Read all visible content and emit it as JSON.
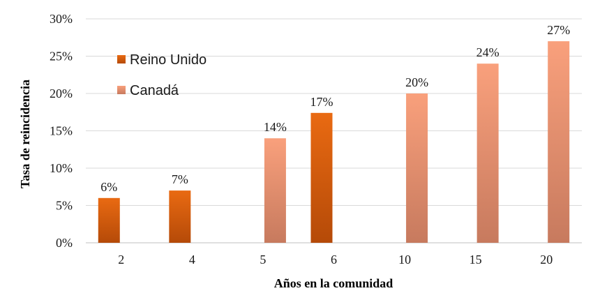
{
  "chart_data": {
    "type": "bar",
    "xlabel": "Años en la comunidad",
    "ylabel": "Tasa de reincidencia",
    "categories": [
      "2",
      "4",
      "5",
      "6",
      "10",
      "15",
      "20"
    ],
    "ylim": [
      0,
      30
    ],
    "y_ticks": [
      "0%",
      "5%",
      "10%",
      "15%",
      "20%",
      "25%",
      "30%"
    ],
    "grid": true,
    "legend_position": "top-left",
    "series": [
      {
        "name": "Reino Unido",
        "color_top": "#e96a12",
        "color_bottom": "#b54a08",
        "values": [
          6,
          7,
          null,
          17.4,
          null,
          null,
          null
        ],
        "labels": [
          "6%",
          "7%",
          "",
          "17%",
          "",
          "",
          ""
        ]
      },
      {
        "name": "Canadá",
        "color_top": "#f9a07c",
        "color_bottom": "#c77a5e",
        "values": [
          null,
          null,
          14,
          null,
          20,
          24,
          27
        ],
        "labels": [
          "",
          "",
          "14%",
          "",
          "20%",
          "24%",
          "27%"
        ]
      }
    ]
  }
}
